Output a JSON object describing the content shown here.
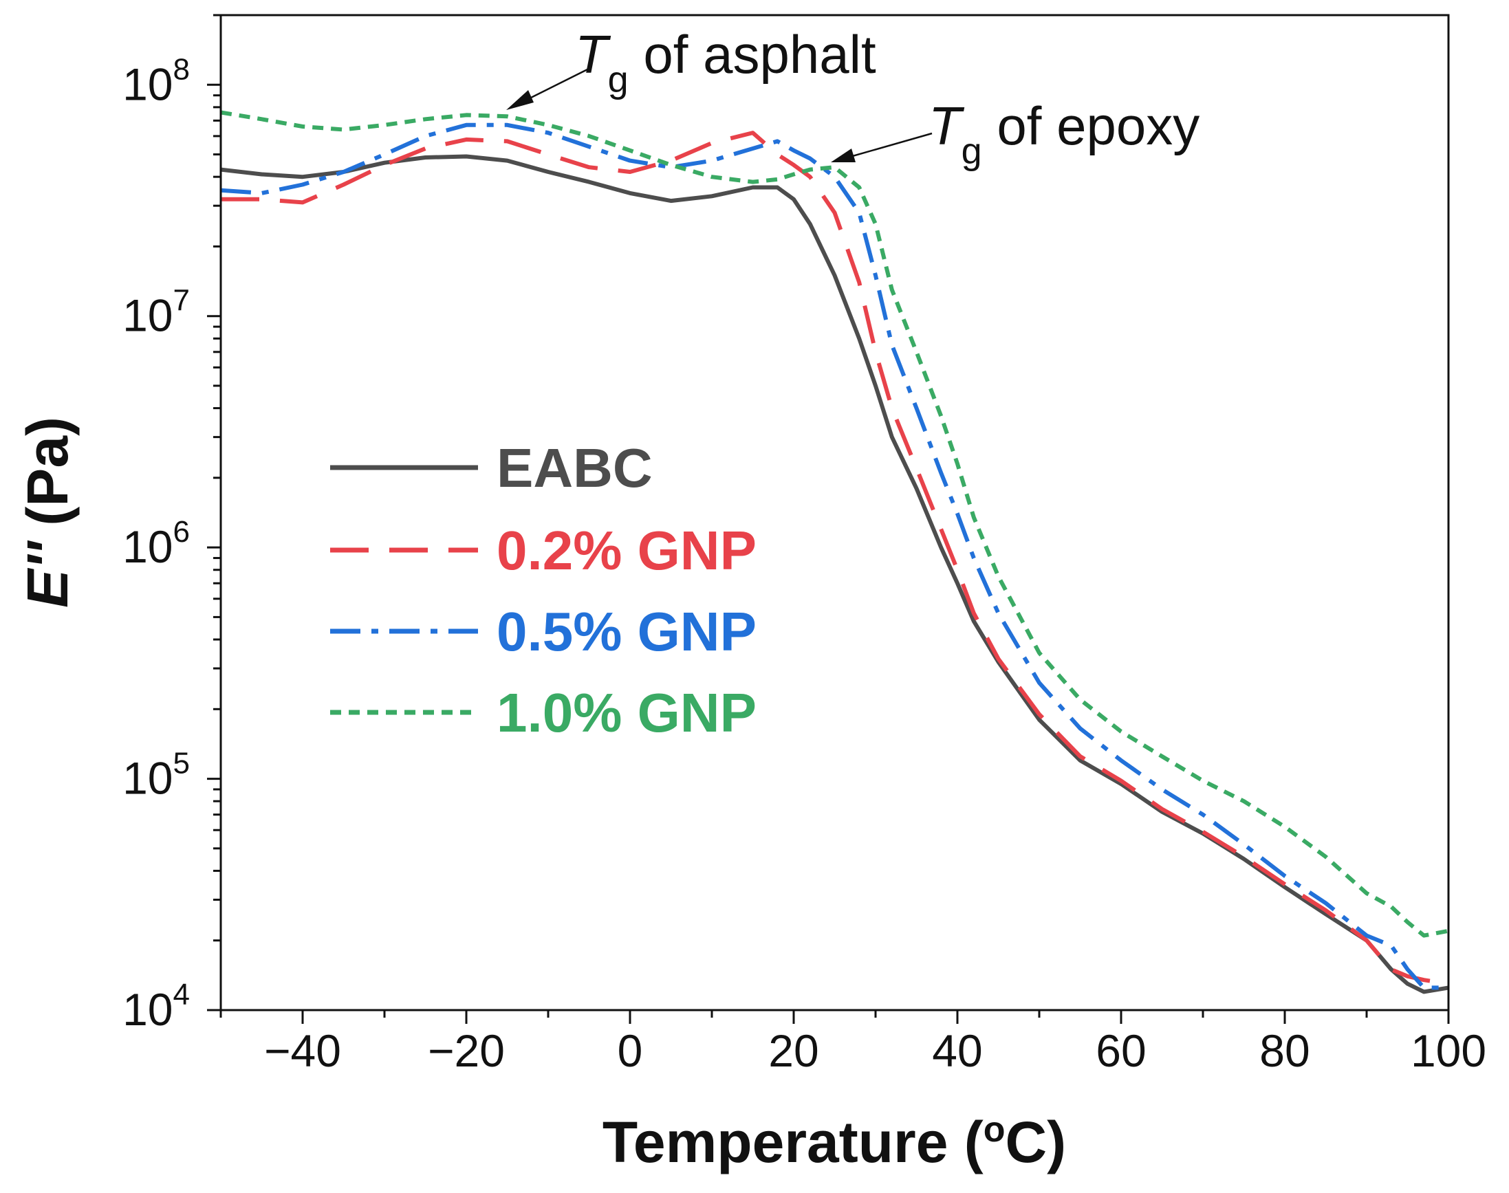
{
  "chart_data": {
    "type": "line",
    "title": "",
    "xlabel": "Temperature (°C)",
    "xlabel_main": "Temperature (",
    "xlabel_degree": "o",
    "xlabel_unit": "C)",
    "ylabel": "E'' (Pa)",
    "ylabel_main": "E''",
    "ylabel_unit": " (Pa)",
    "xlim": [
      -50,
      100
    ],
    "ylim": [
      10000,
      200000000
    ],
    "yscale": "log",
    "x_ticks": [
      -40,
      -20,
      0,
      20,
      40,
      60,
      80,
      100
    ],
    "x_tick_labels": [
      "−40",
      "−20",
      "0",
      "20",
      "40",
      "60",
      "80",
      "100"
    ],
    "y_ticks": [
      {
        "value": 100000000,
        "base": "10",
        "exp": "8"
      },
      {
        "value": 10000000,
        "base": "10",
        "exp": "7"
      },
      {
        "value": 1000000,
        "base": "10",
        "exp": "6"
      },
      {
        "value": 100000,
        "base": "10",
        "exp": "5"
      },
      {
        "value": 10000,
        "base": "10",
        "exp": "4"
      }
    ],
    "grid": false,
    "legend_position": "center-left",
    "series": [
      {
        "name": "EABC",
        "color": "#4d4d4d",
        "dash": "solid",
        "x": [
          -50,
          -45,
          -40,
          -35,
          -30,
          -25,
          -20,
          -15,
          -10,
          -5,
          0,
          5,
          10,
          15,
          18,
          20,
          22,
          25,
          28,
          30,
          32,
          35,
          38,
          40,
          42,
          45,
          50,
          55,
          60,
          65,
          70,
          75,
          80,
          85,
          90,
          93,
          95,
          97,
          100
        ],
        "y": [
          43000000,
          41000000,
          40000000,
          42000000,
          46000000,
          48500000,
          49000000,
          47000000,
          42000000,
          38000000,
          34000000,
          31500000,
          33000000,
          36000000,
          36000000,
          32000000,
          25000000,
          15000000,
          8000000,
          5000000,
          3000000,
          1800000,
          1000000,
          700000,
          480000,
          320000,
          180000,
          120000,
          95000,
          72000,
          58000,
          45000,
          34000,
          26000,
          20000,
          15000,
          13000,
          12000,
          12500
        ]
      },
      {
        "name": "0.2% GNP",
        "color": "#e8424a",
        "dash": "dashed",
        "x": [
          -50,
          -45,
          -40,
          -35,
          -30,
          -25,
          -20,
          -15,
          -10,
          -5,
          0,
          5,
          10,
          15,
          18,
          20,
          22,
          25,
          28,
          30,
          32,
          35,
          38,
          40,
          42,
          45,
          50,
          55,
          60,
          65,
          70,
          75,
          80,
          85,
          90,
          93,
          95,
          97,
          100
        ],
        "y": [
          32000000,
          32000000,
          31000000,
          37000000,
          45000000,
          53000000,
          58000000,
          57000000,
          50000000,
          44000000,
          42000000,
          47000000,
          56000000,
          62000000,
          50000000,
          45000000,
          40000000,
          28000000,
          14000000,
          7000000,
          4000000,
          2200000,
          1200000,
          800000,
          520000,
          330000,
          190000,
          125000,
          98000,
          74000,
          59000,
          46000,
          35000,
          27000,
          20000,
          15000,
          14000,
          13500,
          13000
        ]
      },
      {
        "name": "0.5% GNP",
        "color": "#2271d9",
        "dash": "dashdot",
        "x": [
          -50,
          -45,
          -40,
          -35,
          -30,
          -25,
          -20,
          -15,
          -10,
          -5,
          0,
          5,
          10,
          15,
          18,
          20,
          22,
          25,
          28,
          30,
          32,
          35,
          38,
          40,
          42,
          45,
          50,
          55,
          60,
          65,
          70,
          75,
          80,
          85,
          90,
          93,
          95,
          97,
          100
        ],
        "y": [
          35000000,
          34000000,
          37000000,
          42000000,
          50000000,
          60000000,
          67000000,
          67000000,
          62000000,
          54000000,
          47000000,
          44000000,
          47000000,
          53000000,
          57000000,
          52000000,
          48000000,
          40000000,
          28000000,
          15000000,
          7500000,
          4000000,
          2100000,
          1400000,
          900000,
          520000,
          260000,
          165000,
          120000,
          90000,
          70000,
          52000,
          38000,
          29000,
          21000,
          19000,
          15000,
          12500,
          12500
        ]
      },
      {
        "name": "1.0% GNP",
        "color": "#3aaa64",
        "dash": "dotted",
        "x": [
          -50,
          -45,
          -40,
          -35,
          -30,
          -25,
          -20,
          -15,
          -10,
          -5,
          0,
          5,
          10,
          15,
          18,
          20,
          22,
          25,
          28,
          30,
          32,
          35,
          38,
          40,
          42,
          45,
          50,
          55,
          60,
          65,
          70,
          75,
          80,
          85,
          90,
          93,
          95,
          97,
          100
        ],
        "y": [
          76000000,
          71000000,
          66000000,
          64000000,
          67000000,
          71000000,
          74000000,
          73000000,
          67000000,
          60000000,
          52000000,
          45000000,
          40000000,
          38000000,
          39000000,
          41000000,
          43000000,
          44000000,
          36000000,
          25000000,
          13000000,
          7000000,
          3700000,
          2300000,
          1350000,
          750000,
          350000,
          220000,
          160000,
          125000,
          98000,
          80000,
          62000,
          46000,
          32000,
          28000,
          24000,
          21000,
          22000
        ]
      }
    ],
    "annotations": [
      {
        "symbol": "T",
        "subscript": "g",
        "text": " of asphalt",
        "target_x": -15,
        "target_y": 76000000
      },
      {
        "symbol": "T",
        "subscript": "g",
        "text": " of epoxy",
        "target_x": 24,
        "target_y": 46000000
      }
    ]
  }
}
